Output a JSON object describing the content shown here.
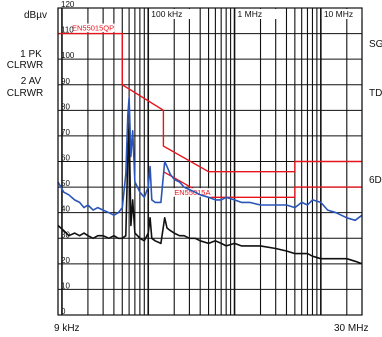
{
  "chart_data": {
    "type": "line",
    "title": "",
    "xlabel": "",
    "ylabel": "",
    "y_unit": "dBµv",
    "x_scale": "log",
    "x_range_hz": [
      9000,
      30000000
    ],
    "ylim": [
      0,
      120
    ],
    "grid": true,
    "x_edge_labels": [
      "9 kHz",
      "30 MHz"
    ],
    "x_top_labels": [
      {
        "hz": 100000,
        "label": "100 kHz"
      },
      {
        "hz": 1000000,
        "label": "1 MHz"
      },
      {
        "hz": 10000000,
        "label": "10 MHz"
      }
    ],
    "y_ticks": [
      0,
      10,
      20,
      30,
      40,
      50,
      60,
      70,
      80,
      90,
      100,
      110,
      120
    ],
    "trace_labels": [
      "1 PK",
      "CLRWR",
      "2 AV",
      "CLRWR"
    ],
    "right_labels": [
      "SG",
      "TD",
      "6D"
    ],
    "limit_lines": [
      {
        "name": "EN55015QP",
        "color": "#e8141c",
        "points": [
          [
            9000,
            110
          ],
          [
            50000,
            110
          ],
          [
            50000,
            90
          ],
          [
            150000,
            80
          ],
          [
            150000,
            66
          ],
          [
            500000,
            56
          ],
          [
            5000000,
            56
          ],
          [
            5000000,
            60
          ],
          [
            30000000,
            60
          ]
        ]
      },
      {
        "name": "EN55015A",
        "color": "#e8141c",
        "points": [
          [
            150000,
            56
          ],
          [
            500000,
            46
          ],
          [
            5000000,
            46
          ],
          [
            5000000,
            50
          ],
          [
            30000000,
            50
          ]
        ]
      }
    ],
    "series": [
      {
        "name": "1 PK",
        "color": "#2a55b8",
        "points": [
          [
            9000,
            52
          ],
          [
            10500,
            48
          ],
          [
            12000,
            47
          ],
          [
            14000,
            45
          ],
          [
            16000,
            44
          ],
          [
            18000,
            42
          ],
          [
            20000,
            43
          ],
          [
            23000,
            41
          ],
          [
            26000,
            42
          ],
          [
            30000,
            41
          ],
          [
            35000,
            40
          ],
          [
            40000,
            39
          ],
          [
            45000,
            40
          ],
          [
            50000,
            42
          ],
          [
            55000,
            55
          ],
          [
            58000,
            78
          ],
          [
            60000,
            85
          ],
          [
            63000,
            62
          ],
          [
            66000,
            72
          ],
          [
            70000,
            52
          ],
          [
            75000,
            50
          ],
          [
            80000,
            48
          ],
          [
            90000,
            46
          ],
          [
            100000,
            50
          ],
          [
            105000,
            58
          ],
          [
            110000,
            45
          ],
          [
            120000,
            44
          ],
          [
            140000,
            44
          ],
          [
            155000,
            60
          ],
          [
            165000,
            58
          ],
          [
            180000,
            55
          ],
          [
            200000,
            53
          ],
          [
            230000,
            52
          ],
          [
            260000,
            50
          ],
          [
            300000,
            49
          ],
          [
            350000,
            48
          ],
          [
            400000,
            47
          ],
          [
            500000,
            46
          ],
          [
            600000,
            45
          ],
          [
            700000,
            45
          ],
          [
            800000,
            46
          ],
          [
            1000000,
            45
          ],
          [
            1200000,
            44
          ],
          [
            1500000,
            44
          ],
          [
            2000000,
            43
          ],
          [
            3000000,
            43
          ],
          [
            4000000,
            43
          ],
          [
            5000000,
            42
          ],
          [
            6000000,
            44
          ],
          [
            7000000,
            43
          ],
          [
            8000000,
            45
          ],
          [
            10000000,
            44
          ],
          [
            12000000,
            41
          ],
          [
            15000000,
            40
          ],
          [
            20000000,
            38
          ],
          [
            25000000,
            37
          ],
          [
            30000000,
            39
          ]
        ]
      },
      {
        "name": "2 AV",
        "color": "#111111",
        "points": [
          [
            9000,
            35
          ],
          [
            10500,
            33
          ],
          [
            12000,
            31
          ],
          [
            14000,
            32
          ],
          [
            16000,
            31
          ],
          [
            18000,
            32
          ],
          [
            20000,
            31
          ],
          [
            23000,
            30
          ],
          [
            26000,
            31
          ],
          [
            30000,
            31
          ],
          [
            35000,
            30
          ],
          [
            40000,
            31
          ],
          [
            45000,
            30
          ],
          [
            50000,
            30
          ],
          [
            55000,
            31
          ],
          [
            58000,
            62
          ],
          [
            60000,
            75
          ],
          [
            63000,
            35
          ],
          [
            66000,
            45
          ],
          [
            70000,
            32
          ],
          [
            75000,
            31
          ],
          [
            80000,
            30
          ],
          [
            90000,
            29
          ],
          [
            100000,
            32
          ],
          [
            105000,
            38
          ],
          [
            110000,
            30
          ],
          [
            120000,
            29
          ],
          [
            140000,
            28
          ],
          [
            155000,
            38
          ],
          [
            165000,
            34
          ],
          [
            180000,
            33
          ],
          [
            200000,
            32
          ],
          [
            230000,
            31
          ],
          [
            260000,
            31
          ],
          [
            300000,
            30
          ],
          [
            350000,
            30
          ],
          [
            400000,
            29
          ],
          [
            500000,
            28
          ],
          [
            600000,
            29
          ],
          [
            700000,
            28
          ],
          [
            800000,
            27
          ],
          [
            1000000,
            28
          ],
          [
            1200000,
            27
          ],
          [
            1500000,
            27
          ],
          [
            2000000,
            27
          ],
          [
            3000000,
            26
          ],
          [
            4000000,
            25
          ],
          [
            5000000,
            24
          ],
          [
            6000000,
            24
          ],
          [
            7000000,
            24
          ],
          [
            8000000,
            23
          ],
          [
            10000000,
            22
          ],
          [
            12000000,
            22
          ],
          [
            15000000,
            22
          ],
          [
            20000000,
            22
          ],
          [
            25000000,
            21
          ],
          [
            30000000,
            20
          ]
        ]
      }
    ]
  }
}
